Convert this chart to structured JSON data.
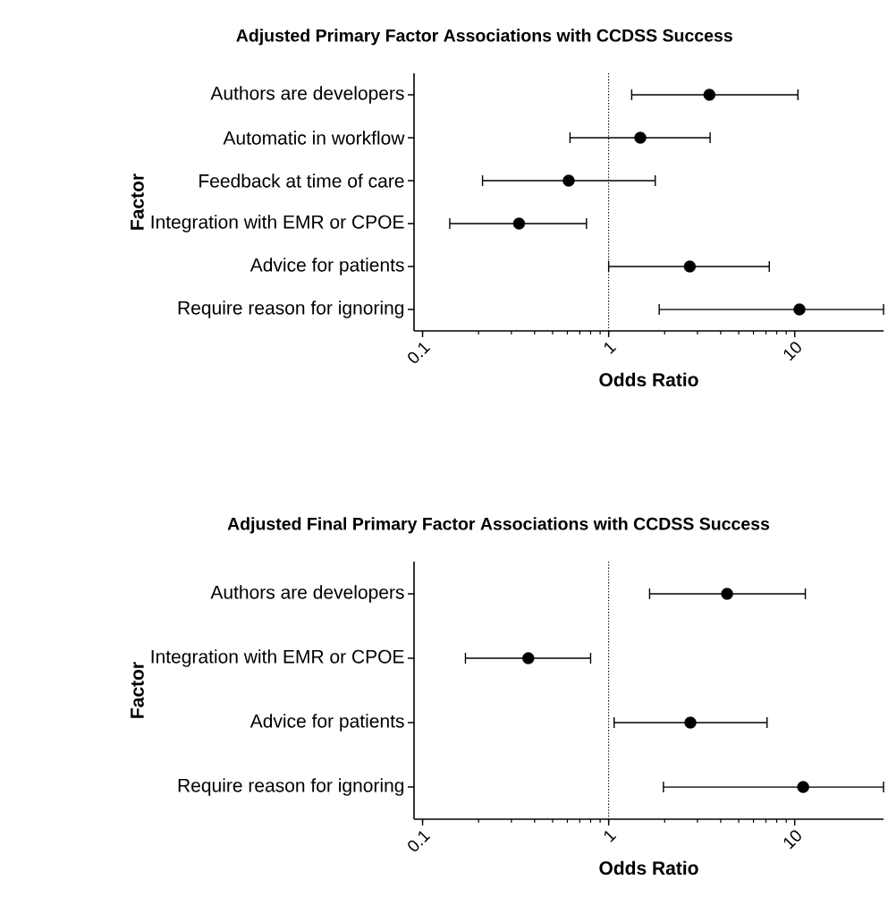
{
  "chart_data": [
    {
      "type": "scatter",
      "title": "Adjusted Primary Factor Associations with CCDSS Success",
      "xlabel": "Odds Ratio",
      "ylabel": "Factor",
      "orientation": "horizontal",
      "categories": [
        "Authors are developers",
        "Automatic in workflow",
        "Feedback at time of care",
        "Integration with EMR or CPOE",
        "Advice for patients",
        "Require reason for ignoring"
      ],
      "values": [
        3.48,
        1.48,
        0.61,
        0.33,
        2.73,
        10.6
      ],
      "errors": [
        [
          1.33,
          10.4
        ],
        [
          0.62,
          3.51
        ],
        [
          0.21,
          1.78
        ],
        [
          0.14,
          0.76
        ],
        [
          1.0,
          7.3
        ],
        [
          1.87,
          30
        ]
      ],
      "color": "#000000",
      "marker": "circle",
      "log": "x",
      "xlim": [
        0.09,
        30
      ],
      "xticks": [
        0.1,
        1,
        10
      ],
      "ref_lines": [
        {
          "axis": "x",
          "value": 1,
          "line_style": "dotted"
        }
      ]
    },
    {
      "type": "scatter",
      "title": "Adjusted Final Primary Factor Associations with CCDSS Success",
      "xlabel": "Odds Ratio",
      "ylabel": "Factor",
      "orientation": "horizontal",
      "categories": [
        "Authors are developers",
        "Integration with EMR or CPOE",
        "Advice for patients",
        "Require reason for ignoring"
      ],
      "values": [
        4.33,
        0.37,
        2.75,
        11.1
      ],
      "errors": [
        [
          1.66,
          11.4
        ],
        [
          0.17,
          0.8
        ],
        [
          1.07,
          7.1
        ],
        [
          1.97,
          30
        ]
      ],
      "color": "#000000",
      "marker": "circle",
      "log": "x",
      "xlim": [
        0.09,
        30
      ],
      "xticks": [
        0.1,
        1,
        10
      ],
      "ref_lines": [
        {
          "axis": "x",
          "value": 1,
          "line_style": "dotted"
        }
      ]
    }
  ]
}
